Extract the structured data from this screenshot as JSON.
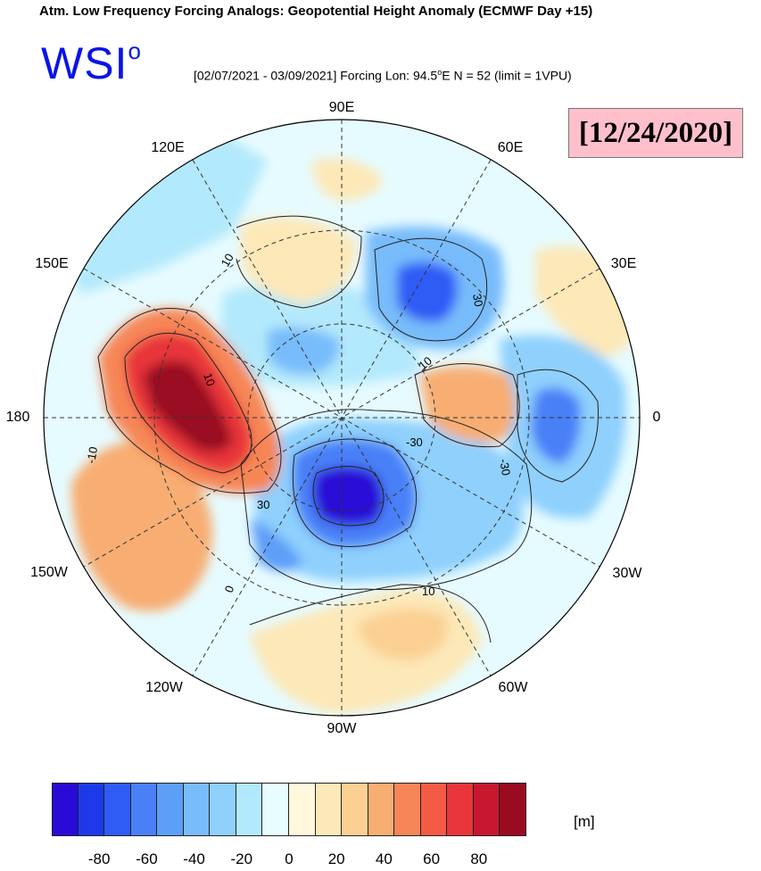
{
  "title": "Atm. Low Frequency Forcing Analogs: Geopotential Height Anomaly (ECMWF Day +15)",
  "logo": {
    "text": "WSI",
    "sup": "o"
  },
  "subtitle": {
    "before": "[02/07/2021 - 03/09/2021] Forcing Lon: 94.5",
    "deg": "o",
    "after": "E   N = 52 (limit = 1VPU)"
  },
  "date_box": "[12/24/2020]",
  "longitude_labels": {
    "lon_90E": "90E",
    "lon_60E": "60E",
    "lon_120E": "120E",
    "lon_150E": "150E",
    "lon_30E": "30E",
    "lon_180": "180",
    "lon_0": "0",
    "lon_150W": "150W",
    "lon_30W": "30W",
    "lon_120W": "120W",
    "lon_60W": "60W",
    "lon_90W": "90W"
  },
  "contour_labels": {
    "c1": "10",
    "c2": "10",
    "c3": "-10",
    "c4": "30",
    "c5": "-30",
    "c6": "-30",
    "c7": "30",
    "c8": "10",
    "c9": "0",
    "c10": "10"
  },
  "colorbar": {
    "unit": "[m]",
    "colors": [
      "#2a0ad6",
      "#1e3ae8",
      "#2f5cf5",
      "#4a80f7",
      "#5d9ef8",
      "#78bcfb",
      "#8fd0fd",
      "#b3e9fc",
      "#e7fdff",
      "#fff8dc",
      "#fde8b8",
      "#fbd092",
      "#f8ad72",
      "#f68657",
      "#f35b45",
      "#e8363a",
      "#c8182f",
      "#9a0a20"
    ],
    "ticks": [
      "-80",
      "-60",
      "-40",
      "-20",
      "0",
      "20",
      "40",
      "60",
      "80"
    ],
    "tick_values": [
      -80,
      -60,
      -40,
      -20,
      0,
      20,
      40,
      60,
      80
    ],
    "min": -100,
    "max": 100
  }
}
